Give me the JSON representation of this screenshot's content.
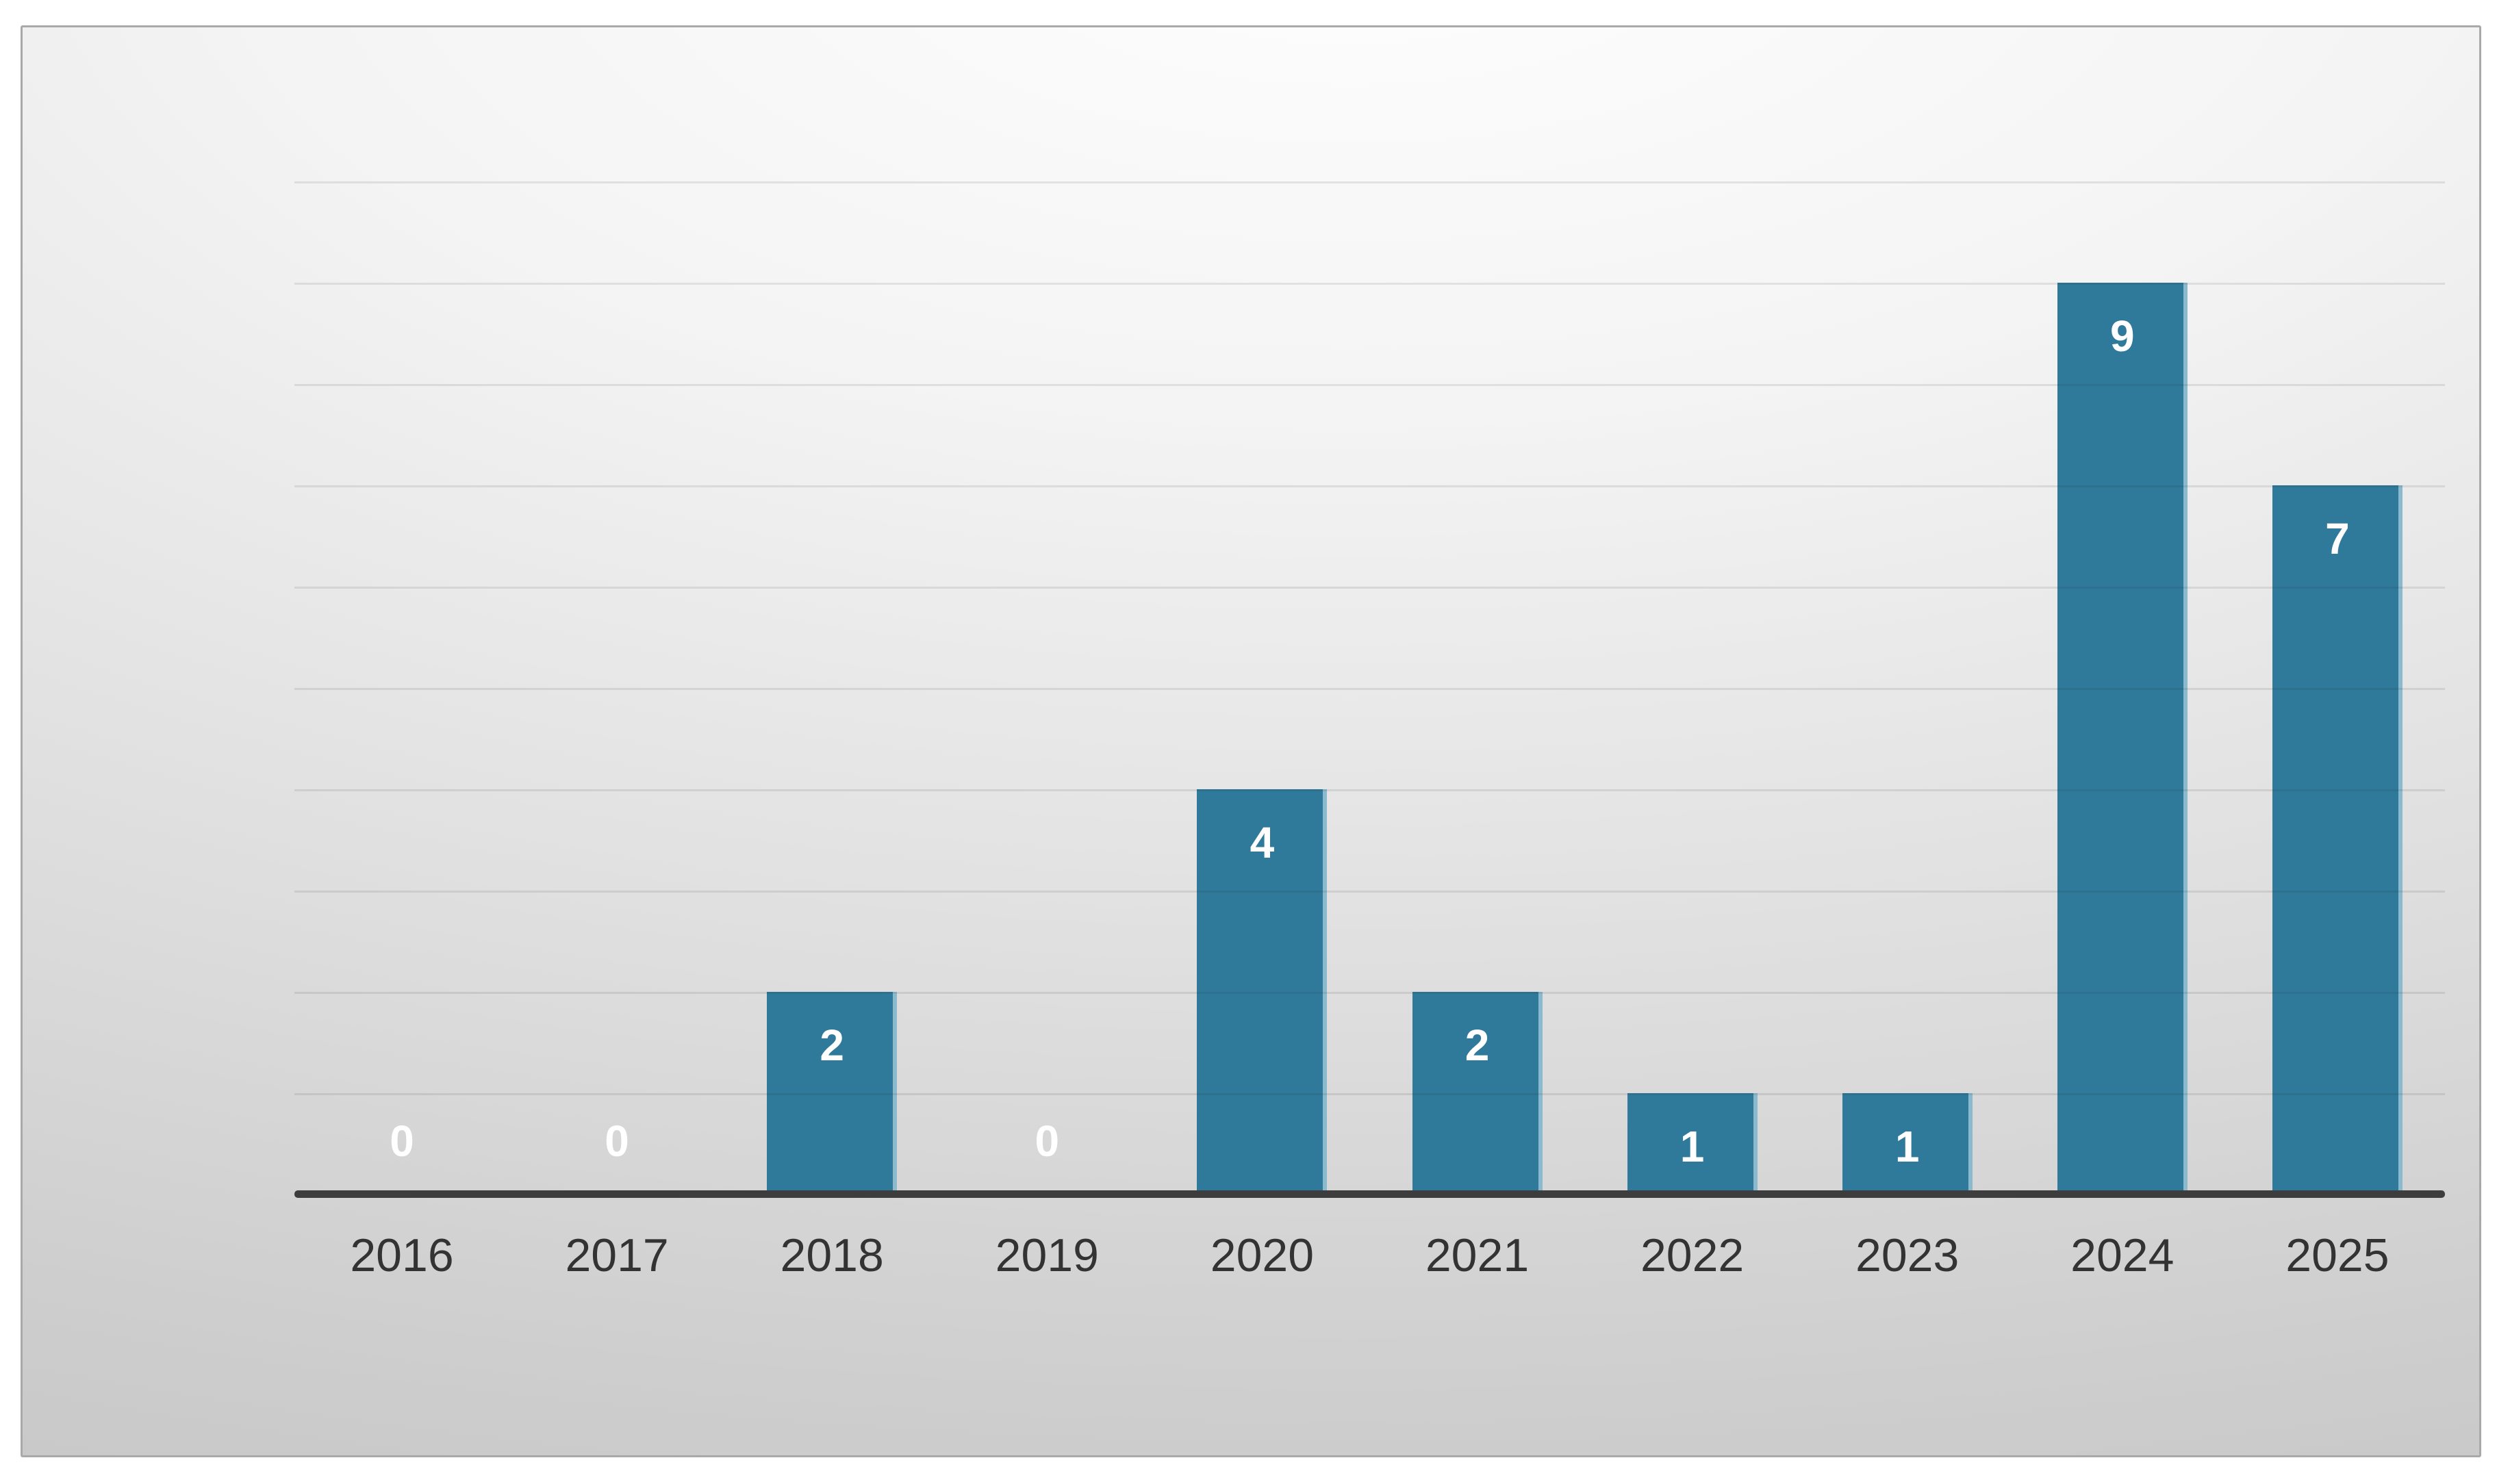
{
  "chart_data": {
    "type": "bar",
    "categories": [
      "2016",
      "2017",
      "2018",
      "2019",
      "2020",
      "2021",
      "2022",
      "2023",
      "2024",
      "2025"
    ],
    "values": [
      0,
      0,
      2,
      0,
      4,
      2,
      1,
      1,
      9,
      7
    ],
    "title": "",
    "xlabel": "",
    "ylabel": "",
    "ylim": [
      0,
      10
    ],
    "grid": "horizontal gridlines every 1 unit, no y-axis tick labels",
    "legend": "none",
    "data_labels": "white bold number at inside-top of each bar; zero values shown just above baseline",
    "bar_color": "#2F7A9B",
    "bar_edge_highlight": "#CDE7F1",
    "axis_line_color": "#3d3d3d",
    "tick_label_color": "#333333",
    "panel_background": "light gray radial gradient, bright at top center",
    "panel_border_color": "#a9a9a9"
  }
}
